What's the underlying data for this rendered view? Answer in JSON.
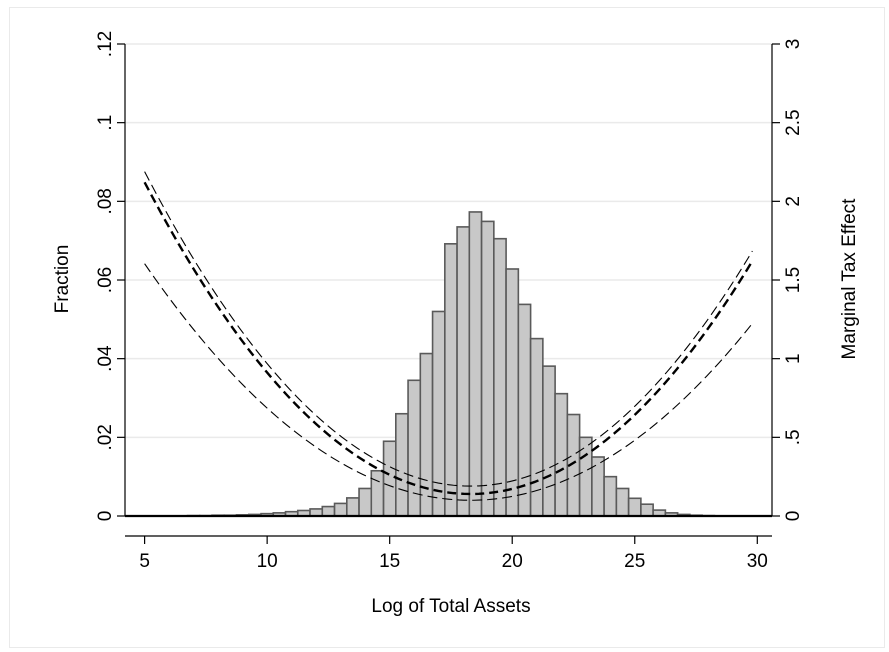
{
  "chart_data": {
    "type": "bar+line",
    "xlabel": "Log of Total Assets",
    "ylabel_left": "Fraction",
    "ylabel_right": "Marginal Tax Effect",
    "xlim": [
      4.2,
      30.6
    ],
    "ylim_left": [
      0,
      0.12
    ],
    "ylim_right": [
      0,
      3
    ],
    "xticks": [
      {
        "value": 5,
        "label": "5"
      },
      {
        "value": 10,
        "label": "10"
      },
      {
        "value": 15,
        "label": "15"
      },
      {
        "value": 20,
        "label": "20"
      },
      {
        "value": 25,
        "label": "25"
      },
      {
        "value": 30,
        "label": "30"
      }
    ],
    "yticks_left": [
      {
        "value": 0,
        "label": "0"
      },
      {
        "value": 0.02,
        "label": ".02"
      },
      {
        "value": 0.04,
        "label": ".04"
      },
      {
        "value": 0.06,
        "label": ".06"
      },
      {
        "value": 0.08,
        "label": ".08"
      },
      {
        "value": 0.1,
        "label": ".1"
      },
      {
        "value": 0.12,
        "label": ".12"
      }
    ],
    "yticks_right": [
      {
        "value": 0,
        "label": "0"
      },
      {
        "value": 0.5,
        "label": ".5"
      },
      {
        "value": 1,
        "label": "1"
      },
      {
        "value": 1.5,
        "label": "1.5"
      },
      {
        "value": 2,
        "label": "2"
      },
      {
        "value": 2.5,
        "label": "2.5"
      },
      {
        "value": 3,
        "label": "3"
      }
    ],
    "grid": true,
    "histogram": {
      "bin_width": 0.5,
      "bins_start": [
        6.75,
        7.25,
        7.75,
        8.25,
        8.75,
        9.25,
        9.75,
        10.25,
        10.75,
        11.25,
        11.75,
        12.25,
        12.75,
        13.25,
        13.75,
        14.25,
        14.75,
        15.25,
        15.75,
        16.25,
        16.75,
        17.25,
        17.75,
        18.25,
        18.75,
        19.25,
        19.75,
        20.25,
        20.75,
        21.25,
        21.75,
        22.25,
        22.75,
        23.25,
        23.75,
        24.25,
        24.75,
        25.25,
        25.75,
        26.25,
        26.75,
        27.25,
        27.75
      ],
      "values": [
        0.0001,
        0.0001,
        0.0002,
        0.0002,
        0.0003,
        0.0004,
        0.0006,
        0.0008,
        0.0011,
        0.0014,
        0.0018,
        0.0024,
        0.0032,
        0.0046,
        0.007,
        0.0115,
        0.019,
        0.026,
        0.0345,
        0.0413,
        0.052,
        0.0692,
        0.0735,
        0.0773,
        0.0749,
        0.0705,
        0.0628,
        0.0538,
        0.0451,
        0.0381,
        0.0311,
        0.0258,
        0.02,
        0.015,
        0.01,
        0.007,
        0.0045,
        0.003,
        0.0015,
        0.0008,
        0.0004,
        0.0002,
        0.0001
      ],
      "fill": "#c8c8c8",
      "stroke": "#5a5a5a"
    },
    "series": [
      {
        "x0": 5,
        "x1": 29.8,
        "vertex_x": 18.3,
        "a": 0.0112,
        "c": 0.14,
        "style": "dashed-thick",
        "axis": "right"
      },
      {
        "x0": 5,
        "x1": 29.8,
        "vertex_x": 18.3,
        "a": 0.0113,
        "c": 0.19,
        "style": "dashed-thin",
        "axis": "right"
      },
      {
        "x0": 5,
        "x1": 29.8,
        "vertex_x": 18.3,
        "a": 0.0085,
        "c": 0.1,
        "style": "dashed-thin",
        "axis": "right"
      }
    ],
    "colors": {
      "grid": "#eaeaea",
      "axis": "#000000",
      "line": "#000000"
    }
  }
}
